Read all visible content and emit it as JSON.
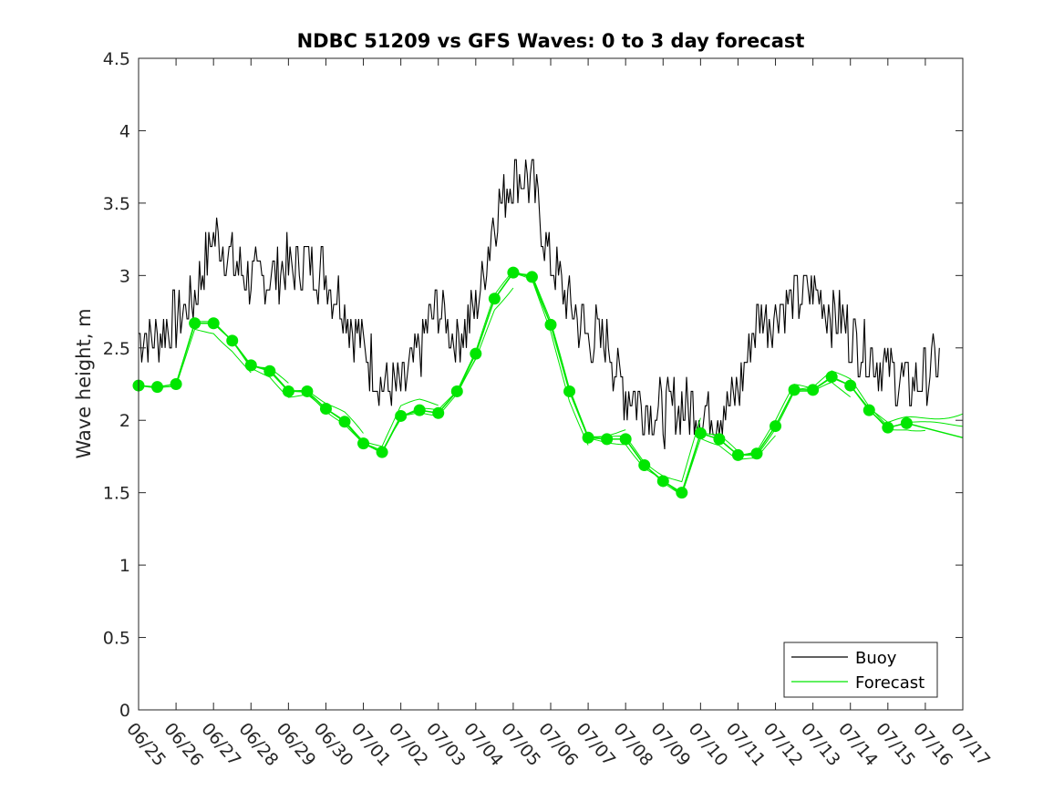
{
  "chart_data": {
    "type": "line",
    "title": "NDBC 51209 vs GFS Waves: 0 to 3 day forecast",
    "xlabel": "",
    "ylabel": "Wave height, m",
    "xlim": [
      "06/25",
      "07/17"
    ],
    "ylim": [
      0,
      4.5
    ],
    "y_ticks": [
      "0",
      "0.5",
      "1",
      "1.5",
      "2",
      "2.5",
      "3",
      "3.5",
      "4",
      "4.5"
    ],
    "x_ticks": [
      "06/25",
      "06/26",
      "06/27",
      "06/28",
      "06/29",
      "06/30",
      "07/01",
      "07/02",
      "07/03",
      "07/04",
      "07/05",
      "07/06",
      "07/07",
      "07/08",
      "07/09",
      "07/10",
      "07/11",
      "07/12",
      "07/13",
      "07/14",
      "07/15",
      "07/16",
      "07/17"
    ],
    "grid": false,
    "legend_position": "bottom-right",
    "series": [
      {
        "name": "Buoy",
        "color": "#000000",
        "x_day": [
          0.0,
          0.5,
          1.0,
          1.5,
          2.0,
          2.5,
          3.0,
          3.5,
          4.0,
          4.5,
          5.0,
          5.5,
          6.0,
          6.5,
          7.0,
          7.5,
          8.0,
          8.5,
          9.0,
          9.5,
          10.0,
          10.5,
          11.0,
          11.5,
          12.0,
          12.5,
          13.0,
          13.5,
          14.0,
          14.5,
          15.0,
          15.5,
          16.0,
          16.5,
          17.0,
          17.5,
          18.0,
          18.5,
          19.0,
          19.5,
          20.0,
          20.5,
          21.0,
          21.4
        ],
        "values": [
          2.6,
          2.55,
          2.7,
          2.85,
          3.3,
          3.1,
          2.95,
          3.0,
          3.05,
          3.1,
          3.0,
          2.75,
          2.5,
          2.25,
          2.2,
          2.5,
          2.8,
          2.55,
          2.75,
          3.4,
          3.7,
          3.65,
          3.1,
          2.8,
          2.6,
          2.55,
          2.2,
          2.1,
          2.05,
          2.1,
          2.05,
          2.05,
          2.2,
          2.7,
          2.75,
          2.85,
          2.9,
          2.75,
          2.6,
          2.45,
          2.35,
          2.25,
          2.3,
          2.4
        ]
      },
      {
        "name": "Forecast",
        "color": "#00e600",
        "x_day": [
          0.0,
          0.5,
          1.0,
          1.5,
          2.0,
          2.5,
          3.0,
          3.5,
          4.0,
          4.5,
          5.0,
          5.5,
          6.0,
          6.5,
          7.0,
          7.5,
          8.0,
          8.5,
          9.0,
          9.5,
          10.0,
          10.5,
          11.0,
          11.5,
          12.0,
          12.5,
          13.0,
          13.5,
          14.0,
          14.5,
          15.0,
          15.5,
          16.0,
          16.5,
          17.0,
          17.5,
          18.0,
          18.5,
          19.0,
          19.5,
          20.0,
          20.5
        ],
        "values": [
          2.24,
          2.23,
          2.25,
          2.67,
          2.67,
          2.55,
          2.38,
          2.34,
          2.2,
          2.2,
          2.08,
          1.99,
          1.84,
          1.78,
          2.03,
          2.07,
          2.05,
          2.2,
          2.46,
          2.84,
          3.02,
          2.99,
          2.66,
          2.2,
          1.88,
          1.87,
          1.87,
          1.69,
          1.58,
          1.5,
          1.91,
          1.87,
          1.76,
          1.77,
          1.96,
          2.21,
          2.21,
          2.3,
          2.24,
          2.07,
          1.95,
          1.98
        ]
      }
    ]
  }
}
